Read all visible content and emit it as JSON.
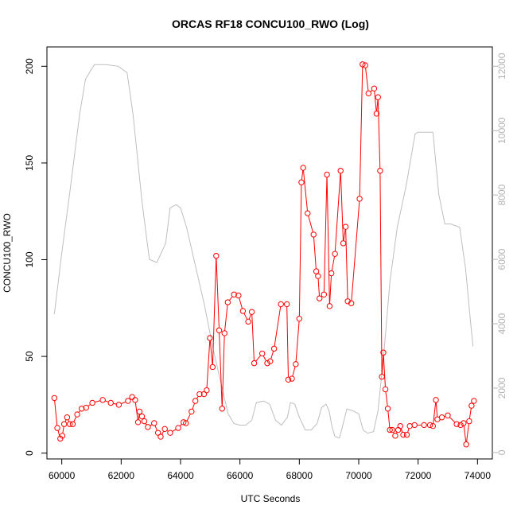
{
  "chart_data": {
    "type": "line",
    "title": "ORCAS RF18 CONCU100_RWO (Log)",
    "xlabel": "UTC Seconds",
    "ylabel": "CONCU100_RWO",
    "xlim": [
      59500,
      74500
    ],
    "ylim": [
      -3,
      210
    ],
    "y2lim": [
      -200,
      12600
    ],
    "x_ticks": [
      60000,
      62000,
      64000,
      66000,
      68000,
      70000,
      72000,
      74000
    ],
    "y_ticks": [
      0,
      50,
      100,
      150,
      200
    ],
    "y2_ticks": [
      0,
      2000,
      4000,
      6000,
      8000,
      10000,
      12000
    ],
    "grid": false,
    "colors": {
      "series": "#ff0000",
      "altitude": "#bebebe",
      "axis": "#000000",
      "right_axis": "#b3b3b3"
    },
    "series": [
      {
        "role": "primary",
        "points": [
          [
            59750,
            28.5
          ],
          [
            59850,
            13
          ],
          [
            59950,
            7.5
          ],
          [
            60020,
            9
          ],
          [
            60080,
            15
          ],
          [
            60180,
            18.5
          ],
          [
            60270,
            15
          ],
          [
            60370,
            15
          ],
          [
            60520,
            20
          ],
          [
            60670,
            23
          ],
          [
            60820,
            23.5
          ],
          [
            61030,
            26
          ],
          [
            61380,
            27.5
          ],
          [
            61650,
            26
          ],
          [
            61920,
            25
          ],
          [
            62230,
            27
          ],
          [
            62370,
            29
          ],
          [
            62470,
            27.5
          ],
          [
            62570,
            16
          ],
          [
            62620,
            21.5
          ],
          [
            62700,
            19
          ],
          [
            62780,
            16.5
          ],
          [
            62900,
            13.5
          ],
          [
            63110,
            15.5
          ],
          [
            63240,
            10.5
          ],
          [
            63330,
            8.5
          ],
          [
            63470,
            12.5
          ],
          [
            63650,
            10.5
          ],
          [
            63920,
            13
          ],
          [
            64100,
            16
          ],
          [
            64180,
            15.5
          ],
          [
            64370,
            21.5
          ],
          [
            64500,
            27
          ],
          [
            64640,
            30.5
          ],
          [
            64790,
            30.5
          ],
          [
            64880,
            32.5
          ],
          [
            64990,
            59.5
          ],
          [
            65080,
            44.5
          ],
          [
            65200,
            102
          ],
          [
            65300,
            63.5
          ],
          [
            65400,
            23
          ],
          [
            65480,
            62
          ],
          [
            65590,
            78
          ],
          [
            65800,
            82
          ],
          [
            65950,
            81.5
          ],
          [
            66100,
            73.5
          ],
          [
            66280,
            68
          ],
          [
            66400,
            73
          ],
          [
            66480,
            46.5
          ],
          [
            66750,
            51.5
          ],
          [
            66920,
            46.5
          ],
          [
            67020,
            47.5
          ],
          [
            67150,
            54
          ],
          [
            67380,
            77
          ],
          [
            67580,
            77
          ],
          [
            67630,
            38
          ],
          [
            67750,
            38.5
          ],
          [
            67880,
            46
          ],
          [
            68000,
            69.5
          ],
          [
            68070,
            140
          ],
          [
            68130,
            147.5
          ],
          [
            68280,
            124
          ],
          [
            68480,
            113
          ],
          [
            68570,
            94
          ],
          [
            68630,
            91.5
          ],
          [
            68680,
            80
          ],
          [
            68830,
            82
          ],
          [
            68930,
            144
          ],
          [
            69020,
            76
          ],
          [
            69080,
            93
          ],
          [
            69200,
            103
          ],
          [
            69390,
            146
          ],
          [
            69480,
            108.5
          ],
          [
            69560,
            117
          ],
          [
            69630,
            78.5
          ],
          [
            69750,
            77.5
          ],
          [
            70030,
            131.5
          ],
          [
            70130,
            201
          ],
          [
            70220,
            200.5
          ],
          [
            70330,
            186
          ],
          [
            70520,
            188.5
          ],
          [
            70600,
            175.5
          ],
          [
            70650,
            184
          ],
          [
            70720,
            146
          ],
          [
            70780,
            39.5
          ],
          [
            70830,
            52
          ],
          [
            70900,
            33
          ],
          [
            70980,
            23
          ],
          [
            71050,
            12
          ],
          [
            71130,
            12
          ],
          [
            71230,
            9
          ],
          [
            71330,
            12
          ],
          [
            71400,
            14
          ],
          [
            71500,
            9.5
          ],
          [
            71620,
            9.5
          ],
          [
            71720,
            14
          ],
          [
            71880,
            14.5
          ],
          [
            72200,
            14.5
          ],
          [
            72400,
            14.5
          ],
          [
            72500,
            14
          ],
          [
            72600,
            27.5
          ],
          [
            72650,
            17.5
          ],
          [
            72800,
            18.5
          ],
          [
            73000,
            19.5
          ],
          [
            73300,
            15
          ],
          [
            73430,
            14.5
          ],
          [
            73530,
            15.5
          ],
          [
            73620,
            4.5
          ],
          [
            73720,
            16.5
          ],
          [
            73800,
            24.5
          ],
          [
            73880,
            27
          ]
        ]
      },
      {
        "role": "altitude",
        "axis": "right",
        "points": [
          [
            59750,
            4300
          ],
          [
            60000,
            6200
          ],
          [
            60300,
            8300
          ],
          [
            60600,
            10500
          ],
          [
            60800,
            11600
          ],
          [
            61100,
            12050
          ],
          [
            61500,
            12050
          ],
          [
            61900,
            12000
          ],
          [
            62200,
            11800
          ],
          [
            62400,
            10500
          ],
          [
            62700,
            7800
          ],
          [
            62950,
            6000
          ],
          [
            63200,
            5900
          ],
          [
            63500,
            6500
          ],
          [
            63650,
            7600
          ],
          [
            63850,
            7700
          ],
          [
            64000,
            7600
          ],
          [
            64200,
            7000
          ],
          [
            64500,
            5800
          ],
          [
            64800,
            4600
          ],
          [
            65100,
            3200
          ],
          [
            65400,
            2000
          ],
          [
            65600,
            1200
          ],
          [
            65800,
            900
          ],
          [
            66000,
            850
          ],
          [
            66200,
            850
          ],
          [
            66400,
            1000
          ],
          [
            66550,
            1550
          ],
          [
            66800,
            1600
          ],
          [
            67000,
            1500
          ],
          [
            67200,
            1000
          ],
          [
            67400,
            850
          ],
          [
            67600,
            1100
          ],
          [
            67700,
            1550
          ],
          [
            67850,
            1500
          ],
          [
            68000,
            1100
          ],
          [
            68200,
            700
          ],
          [
            68400,
            700
          ],
          [
            68600,
            900
          ],
          [
            68750,
            1400
          ],
          [
            68900,
            1500
          ],
          [
            69000,
            1300
          ],
          [
            69100,
            800
          ],
          [
            69200,
            500
          ],
          [
            69350,
            450
          ],
          [
            69450,
            800
          ],
          [
            69600,
            1350
          ],
          [
            69800,
            1300
          ],
          [
            70000,
            1200
          ],
          [
            70150,
            700
          ],
          [
            70300,
            600
          ],
          [
            70500,
            650
          ],
          [
            70650,
            1300
          ],
          [
            70850,
            3100
          ],
          [
            71050,
            5300
          ],
          [
            71300,
            7000
          ],
          [
            71600,
            8300
          ],
          [
            71900,
            9900
          ],
          [
            72000,
            9950
          ],
          [
            72200,
            9950
          ],
          [
            72500,
            9950
          ],
          [
            72700,
            8000
          ],
          [
            72900,
            7100
          ],
          [
            73100,
            7100
          ],
          [
            73400,
            7000
          ],
          [
            73600,
            5700
          ],
          [
            73750,
            4200
          ],
          [
            73850,
            3300
          ]
        ]
      }
    ]
  }
}
